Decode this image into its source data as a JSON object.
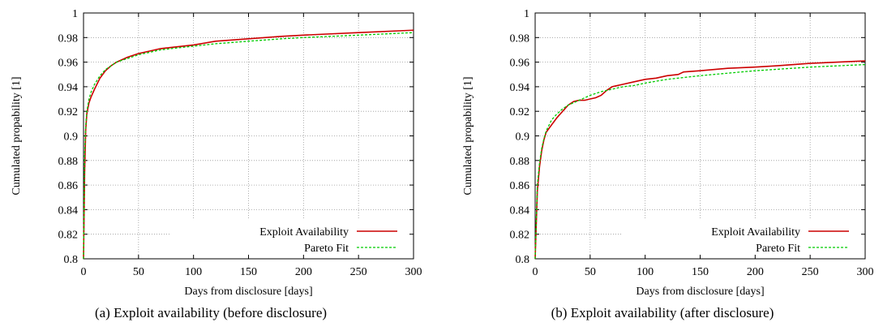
{
  "chart_data": [
    {
      "type": "line",
      "caption": "(a) Exploit availability (before disclosure)",
      "xlabel": "Days from disclosure [days]",
      "ylabel": "Cumulated propability [1]",
      "xlim": [
        0,
        300
      ],
      "ylim": [
        0.8,
        1.0
      ],
      "xticks": [
        "0",
        "50",
        "100",
        "150",
        "200",
        "250",
        "300"
      ],
      "yticks": [
        "0.8",
        "0.82",
        "0.84",
        "0.86",
        "0.88",
        "0.9",
        "0.92",
        "0.94",
        "0.96",
        "0.98",
        "1"
      ],
      "grid": true,
      "legend_position": "bottom-right",
      "series": [
        {
          "name": "Exploit Availability",
          "color": "#cc0000",
          "style": "solid",
          "x": [
            0,
            1,
            2,
            3,
            5,
            7,
            10,
            15,
            20,
            25,
            30,
            40,
            50,
            60,
            70,
            80,
            90,
            100,
            120,
            150,
            180,
            200,
            250,
            300
          ],
          "y": [
            0.8,
            0.87,
            0.905,
            0.918,
            0.927,
            0.932,
            0.938,
            0.947,
            0.953,
            0.957,
            0.96,
            0.964,
            0.967,
            0.969,
            0.971,
            0.972,
            0.973,
            0.974,
            0.977,
            0.979,
            0.981,
            0.982,
            0.984,
            0.986
          ]
        },
        {
          "name": "Pareto Fit",
          "color": "#00cc00",
          "style": "dashed",
          "x": [
            0,
            1,
            2,
            3,
            5,
            7,
            10,
            15,
            20,
            25,
            30,
            40,
            50,
            60,
            70,
            80,
            90,
            100,
            120,
            150,
            180,
            200,
            250,
            300
          ],
          "y": [
            0.8,
            0.885,
            0.908,
            0.92,
            0.93,
            0.936,
            0.942,
            0.949,
            0.954,
            0.957,
            0.96,
            0.963,
            0.966,
            0.968,
            0.97,
            0.971,
            0.972,
            0.973,
            0.975,
            0.977,
            0.979,
            0.98,
            0.982,
            0.984
          ]
        }
      ]
    },
    {
      "type": "line",
      "caption": "(b) Exploit availability (after disclosure)",
      "xlabel": "Days from disclosure [days]",
      "ylabel": "Cumulated propability [1]",
      "xlim": [
        0,
        300
      ],
      "ylim": [
        0.8,
        1.0
      ],
      "xticks": [
        "0",
        "50",
        "100",
        "150",
        "200",
        "250",
        "300"
      ],
      "yticks": [
        "0.8",
        "0.82",
        "0.84",
        "0.86",
        "0.88",
        "0.9",
        "0.92",
        "0.94",
        "0.96",
        "0.98",
        "1"
      ],
      "grid": true,
      "legend_position": "bottom-right",
      "series": [
        {
          "name": "Exploit Availability",
          "color": "#cc0000",
          "style": "solid",
          "x": [
            0,
            2,
            4,
            6,
            8,
            10,
            15,
            20,
            25,
            30,
            35,
            40,
            45,
            50,
            55,
            60,
            65,
            70,
            80,
            90,
            100,
            110,
            120,
            130,
            135,
            150,
            175,
            200,
            220,
            250,
            275,
            300
          ],
          "y": [
            0.8,
            0.855,
            0.875,
            0.888,
            0.897,
            0.903,
            0.909,
            0.915,
            0.92,
            0.925,
            0.928,
            0.929,
            0.929,
            0.93,
            0.931,
            0.933,
            0.937,
            0.94,
            0.942,
            0.944,
            0.946,
            0.947,
            0.949,
            0.95,
            0.952,
            0.953,
            0.955,
            0.956,
            0.957,
            0.959,
            0.96,
            0.961
          ]
        },
        {
          "name": "Pareto Fit",
          "color": "#00cc00",
          "style": "dashed",
          "x": [
            0,
            2,
            4,
            6,
            8,
            10,
            15,
            20,
            25,
            30,
            40,
            50,
            60,
            70,
            80,
            90,
            100,
            120,
            150,
            175,
            200,
            250,
            300
          ],
          "y": [
            0.8,
            0.86,
            0.878,
            0.89,
            0.898,
            0.904,
            0.913,
            0.918,
            0.922,
            0.925,
            0.929,
            0.933,
            0.936,
            0.938,
            0.94,
            0.941,
            0.943,
            0.946,
            0.949,
            0.951,
            0.953,
            0.956,
            0.958
          ]
        }
      ]
    }
  ]
}
